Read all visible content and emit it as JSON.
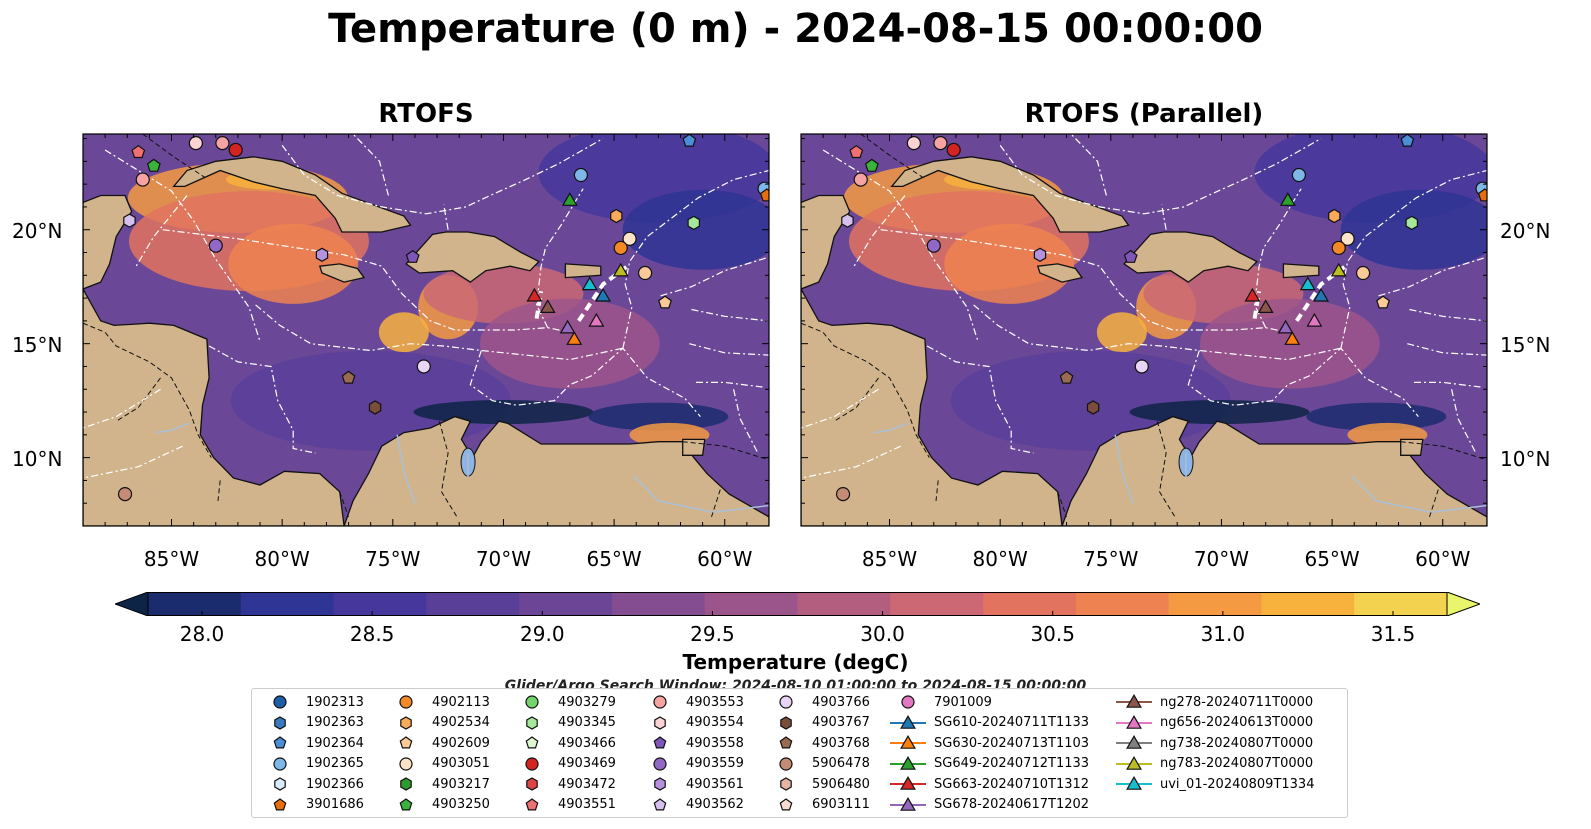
{
  "title": "Temperature (0 m) - 2024-08-15 00:00:00",
  "panels": [
    {
      "title": "RTOFS"
    },
    {
      "title": "RTOFS (Parallel)"
    }
  ],
  "lat_ticks": [
    "20°N",
    "15°N",
    "10°N"
  ],
  "lat_values": [
    20,
    15,
    10
  ],
  "lon_ticks": [
    "85°W",
    "80°W",
    "75°W",
    "70°W",
    "65°W",
    "60°W"
  ],
  "lon_values": [
    -85,
    -80,
    -75,
    -70,
    -65,
    -60
  ],
  "map_extent": {
    "lon": [
      -89,
      -58
    ],
    "lat": [
      7,
      24.2
    ]
  },
  "colorbar": {
    "label": "Temperature (degC)",
    "ticks": [
      "28.0",
      "28.5",
      "29.0",
      "29.5",
      "30.0",
      "30.5",
      "31.0",
      "31.5"
    ],
    "range": [
      28.0,
      31.5
    ],
    "colors": [
      "#0d2447",
      "#1b2c6e",
      "#2f3594",
      "#46379c",
      "#5a3f99",
      "#6c4596",
      "#844d92",
      "#9c558a",
      "#b45e7f",
      "#cb6873",
      "#e1735f",
      "#ee8250",
      "#f49a43",
      "#f7b23e",
      "#f3d250",
      "#e9f56a"
    ],
    "extend": "both"
  },
  "search_window": "Glider/Argo Search Window: 2024-08-10 01:00:00 to 2024-08-15 00:00:00",
  "legend": {
    "columns": [
      [
        {
          "label": "1902313",
          "marker": "circle",
          "color": "#1f5fa8"
        },
        {
          "label": "1902363",
          "marker": "hexagon",
          "color": "#3a78c0"
        },
        {
          "label": "1902364",
          "marker": "pentagon",
          "color": "#4a8fd8"
        },
        {
          "label": "1902365",
          "marker": "circle",
          "color": "#7db8e8"
        },
        {
          "label": "1902366",
          "marker": "hexagon",
          "color": "#d6ecfa"
        },
        {
          "label": "3901686",
          "marker": "pentagon",
          "color": "#e86d0c"
        }
      ],
      [
        {
          "label": "4902113",
          "marker": "circle",
          "color": "#f48a26"
        },
        {
          "label": "4902534",
          "marker": "hexagon",
          "color": "#f9a95a"
        },
        {
          "label": "4902609",
          "marker": "pentagon",
          "color": "#fcc999"
        },
        {
          "label": "4903051",
          "marker": "circle",
          "color": "#fde4c8"
        },
        {
          "label": "4903217",
          "marker": "hexagon",
          "color": "#2c9a2c"
        },
        {
          "label": "4903250",
          "marker": "pentagon",
          "color": "#3bb23b"
        }
      ],
      [
        {
          "label": "4903279",
          "marker": "circle",
          "color": "#72d46b"
        },
        {
          "label": "4903345",
          "marker": "hexagon",
          "color": "#a6e89b"
        },
        {
          "label": "4903466",
          "marker": "pentagon",
          "color": "#dcf7d2"
        },
        {
          "label": "4903469",
          "marker": "circle",
          "color": "#d42422"
        },
        {
          "label": "4903472",
          "marker": "hexagon",
          "color": "#e04545"
        },
        {
          "label": "4903551",
          "marker": "pentagon",
          "color": "#ee7070"
        }
      ],
      [
        {
          "label": "4903553",
          "marker": "circle",
          "color": "#f5a3a3"
        },
        {
          "label": "4903554",
          "marker": "hexagon",
          "color": "#fbd3d3"
        },
        {
          "label": "4903558",
          "marker": "pentagon",
          "color": "#7e55b8"
        },
        {
          "label": "4903559",
          "marker": "circle",
          "color": "#9168c6"
        },
        {
          "label": "4903561",
          "marker": "hexagon",
          "color": "#b592dd"
        },
        {
          "label": "4903562",
          "marker": "pentagon",
          "color": "#d7c0ef"
        }
      ],
      [
        {
          "label": "4903766",
          "marker": "circle",
          "color": "#e8d4f5"
        },
        {
          "label": "4903767",
          "marker": "hexagon",
          "color": "#7a4e3b"
        },
        {
          "label": "4903768",
          "marker": "pentagon",
          "color": "#9a6a52"
        },
        {
          "label": "5906478",
          "marker": "circle",
          "color": "#c48b77"
        },
        {
          "label": "5906480",
          "marker": "hexagon",
          "color": "#e6b4a5"
        },
        {
          "label": "6903111",
          "marker": "pentagon",
          "color": "#f9dcd2"
        }
      ],
      [
        {
          "label": "7901009",
          "marker": "circle",
          "color": "#e378c2"
        },
        {
          "label": "SG610-20240711T1133",
          "marker": "triangle",
          "color": "#1f77b4"
        },
        {
          "label": "SG630-20240713T1103",
          "marker": "triangle",
          "color": "#ff7f0e"
        },
        {
          "label": "SG649-20240712T1133",
          "marker": "triangle",
          "color": "#2ca02c"
        },
        {
          "label": "SG663-20240710T1312",
          "marker": "triangle",
          "color": "#d62728"
        },
        {
          "label": "SG678-20240617T1202",
          "marker": "triangle",
          "color": "#9467bd"
        }
      ],
      [
        {
          "label": "ng278-20240711T0000",
          "marker": "triangle",
          "color": "#8c564b"
        },
        {
          "label": "ng656-20240613T0000",
          "marker": "triangle",
          "color": "#e377c2"
        },
        {
          "label": "ng738-20240807T0000",
          "marker": "triangle",
          "color": "#7f7f7f"
        },
        {
          "label": "ng783-20240807T0000",
          "marker": "triangle",
          "color": "#bcbd22"
        },
        {
          "label": "uvi_01-20240809T1334",
          "marker": "triangle",
          "color": "#17becf"
        }
      ]
    ]
  }
}
